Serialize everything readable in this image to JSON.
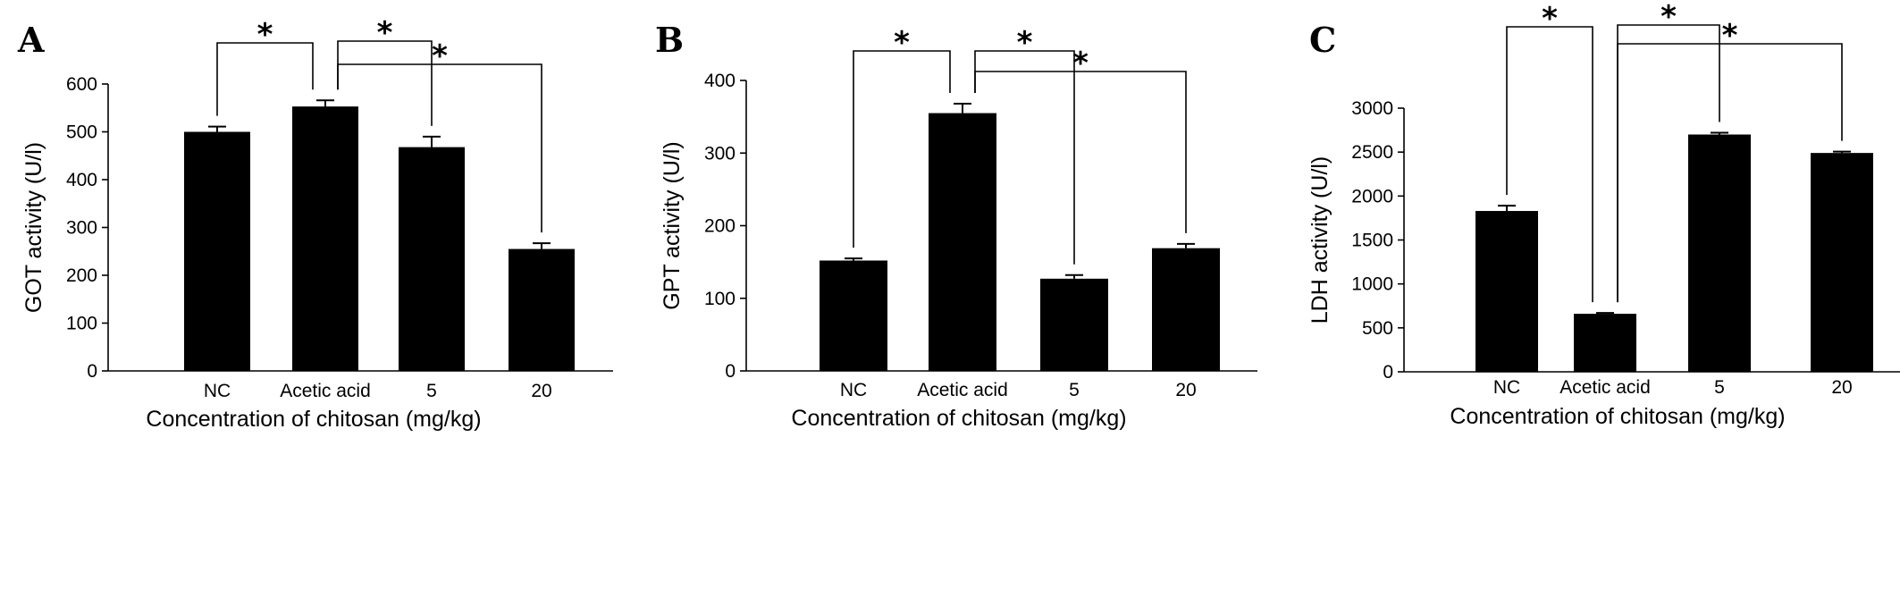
{
  "chart_data": [
    {
      "type": "bar",
      "panel": "A",
      "categories": [
        "NC",
        "Acetic acid",
        "5",
        "20"
      ],
      "values": [
        500,
        553,
        468,
        255
      ],
      "errors": [
        11,
        13,
        22,
        12
      ],
      "ylabel": "GOT activity (U/l)",
      "xlabel": "Concentration of chitosan (mg/kg)",
      "ylim": [
        0,
        600
      ],
      "yticks": [
        0,
        100,
        200,
        300,
        400,
        500,
        600
      ],
      "ytick_labels": [
        "0",
        "100",
        "200",
        "300",
        "400",
        "500",
        "600"
      ],
      "significance": [
        {
          "from": "NC",
          "to": "Acetic acid",
          "label": "*"
        },
        {
          "from": "Acetic acid",
          "to": "5",
          "label": "*"
        },
        {
          "from": "Acetic acid",
          "to": "20",
          "label": "*"
        }
      ],
      "bar_color": "#000000"
    },
    {
      "type": "bar",
      "panel": "B",
      "categories": [
        "NC",
        "Acetic acid",
        "5",
        "20"
      ],
      "values": [
        152,
        355,
        127,
        169
      ],
      "errors": [
        3,
        13,
        5,
        6
      ],
      "ylabel": "GPT activity (U/l)",
      "xlabel": "Concentration of chitosan (mg/kg)",
      "ylim": [
        0,
        400
      ],
      "yticks": [
        0,
        100,
        200,
        300,
        400
      ],
      "ytick_labels": [
        "0",
        "100",
        "200",
        "300",
        "400"
      ],
      "significance": [
        {
          "from": "NC",
          "to": "Acetic acid",
          "label": "*"
        },
        {
          "from": "Acetic acid",
          "to": "5",
          "label": "*"
        },
        {
          "from": "Acetic acid",
          "to": "20",
          "label": "*"
        }
      ],
      "bar_color": "#000000"
    },
    {
      "type": "bar",
      "panel": "C",
      "categories": [
        "NC",
        "Acetic acid",
        "5",
        "20"
      ],
      "values": [
        1830,
        660,
        2700,
        2490
      ],
      "errors": [
        60,
        10,
        20,
        15
      ],
      "ylabel": "LDH activity (U/l)",
      "xlabel": "Concentration of chitosan (mg/kg)",
      "ylim": [
        0,
        3000
      ],
      "yticks": [
        0,
        500,
        1000,
        1500,
        2000,
        2500,
        3000
      ],
      "ytick_labels": [
        "0",
        "500",
        "1000",
        "1500",
        "2000",
        "2500",
        "3000"
      ],
      "significance": [
        {
          "from": "NC",
          "to": "Acetic acid",
          "label": "*"
        },
        {
          "from": "Acetic acid",
          "to": "5",
          "label": "*"
        },
        {
          "from": "Acetic acid",
          "to": "20",
          "label": "*"
        }
      ],
      "bar_color": "#000000"
    }
  ]
}
